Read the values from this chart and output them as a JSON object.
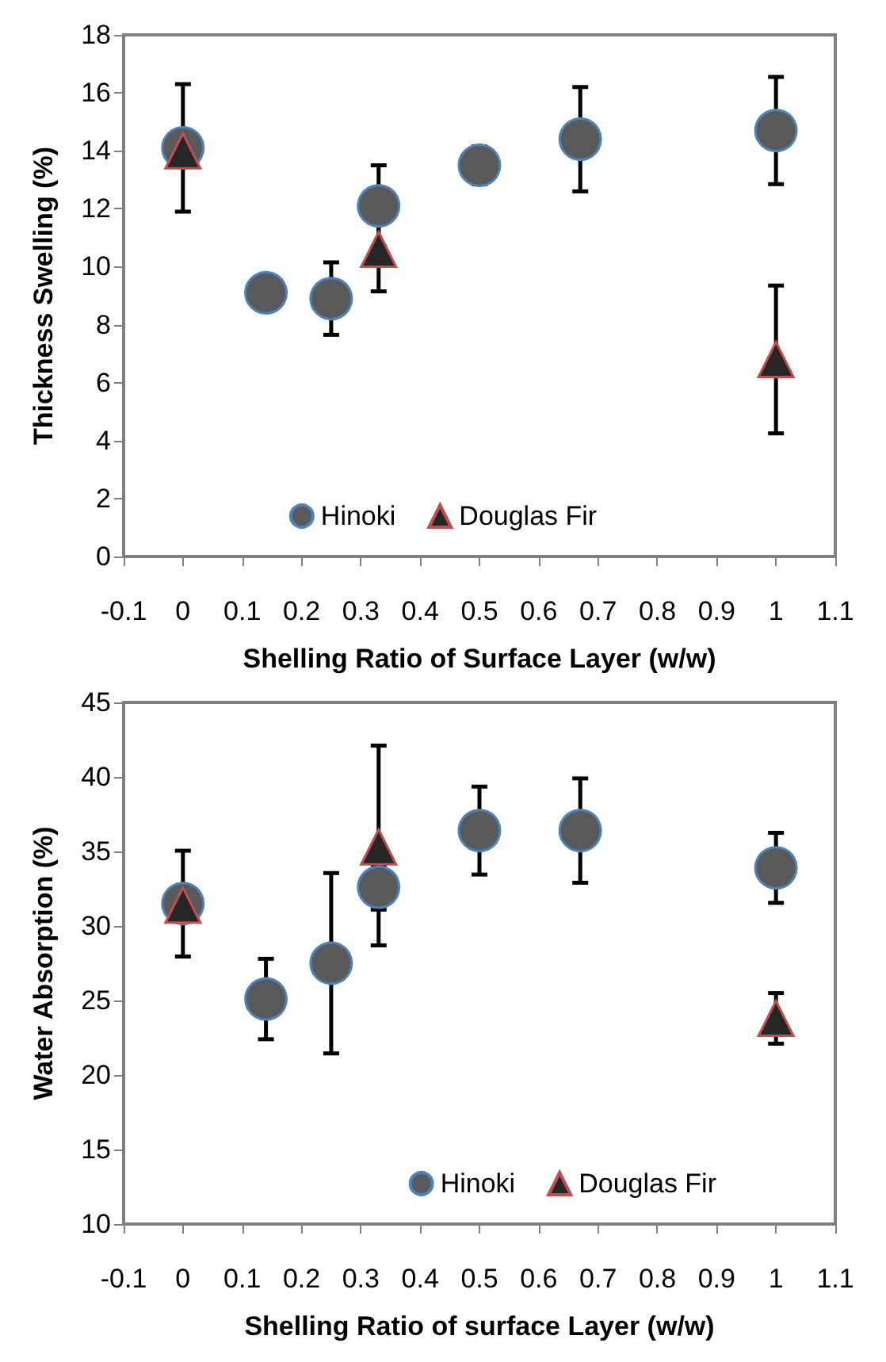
{
  "chart_data": [
    {
      "type": "scatter",
      "xlabel": "Shelling Ratio of Surface Layer (w/w)",
      "ylabel": "Thickness Swelling (%)",
      "xlim": [
        -0.1,
        1.1
      ],
      "xticks": [
        -0.1,
        0,
        0.1,
        0.2,
        0.3,
        0.4,
        0.5,
        0.6,
        0.7,
        0.8,
        0.9,
        1,
        1.1
      ],
      "ylim": [
        0,
        18
      ],
      "yticks": [
        0,
        2,
        4,
        6,
        8,
        10,
        12,
        14,
        16,
        18
      ],
      "grid": false,
      "legend": "bottom",
      "series": [
        {
          "name": "Hinoki",
          "color": "#595959",
          "marker": "circle",
          "x": [
            0,
            0.14,
            0.25,
            0.33,
            0.5,
            0.67,
            1
          ],
          "values": [
            14.1,
            9.1,
            8.9,
            12.1,
            13.5,
            14.4,
            14.7
          ],
          "errors": [
            2.2,
            null,
            1.25,
            1.4,
            0.65,
            1.8,
            1.85
          ]
        },
        {
          "name": "Douglas Fir",
          "color": "#262626",
          "marker": "triangle",
          "x": [
            0,
            0.33,
            1
          ],
          "values": [
            14.0,
            10.6,
            6.8
          ],
          "errors": [
            null,
            1.45,
            2.55
          ]
        }
      ]
    },
    {
      "type": "scatter",
      "xlabel": "Shelling Ratio of surface Layer (w/w)",
      "ylabel": "Water Absorption (%)",
      "xlim": [
        -0.1,
        1.1
      ],
      "xticks": [
        -0.1,
        0,
        0.1,
        0.2,
        0.3,
        0.4,
        0.5,
        0.6,
        0.7,
        0.8,
        0.9,
        1,
        1.1
      ],
      "ylim": [
        10,
        45
      ],
      "yticks": [
        10,
        15,
        20,
        25,
        30,
        35,
        40,
        45
      ],
      "grid": false,
      "legend": "bottom right",
      "series": [
        {
          "name": "Hinoki",
          "color": "#595959",
          "marker": "circle",
          "x": [
            0,
            0.14,
            0.25,
            0.33,
            0.5,
            0.67,
            1
          ],
          "values": [
            31.5,
            25.1,
            27.5,
            32.6,
            36.4,
            36.4,
            33.9
          ],
          "errors": [
            3.55,
            2.7,
            6.05,
            1.5,
            2.95,
            3.5,
            2.35
          ]
        },
        {
          "name": "Douglas Fir",
          "color": "#262626",
          "marker": "triangle",
          "x": [
            0,
            0.33,
            1
          ],
          "values": [
            31.4,
            35.3,
            23.8
          ],
          "errors": [
            null,
            [
              28.7,
              42.1
            ],
            1.7
          ]
        }
      ]
    }
  ]
}
